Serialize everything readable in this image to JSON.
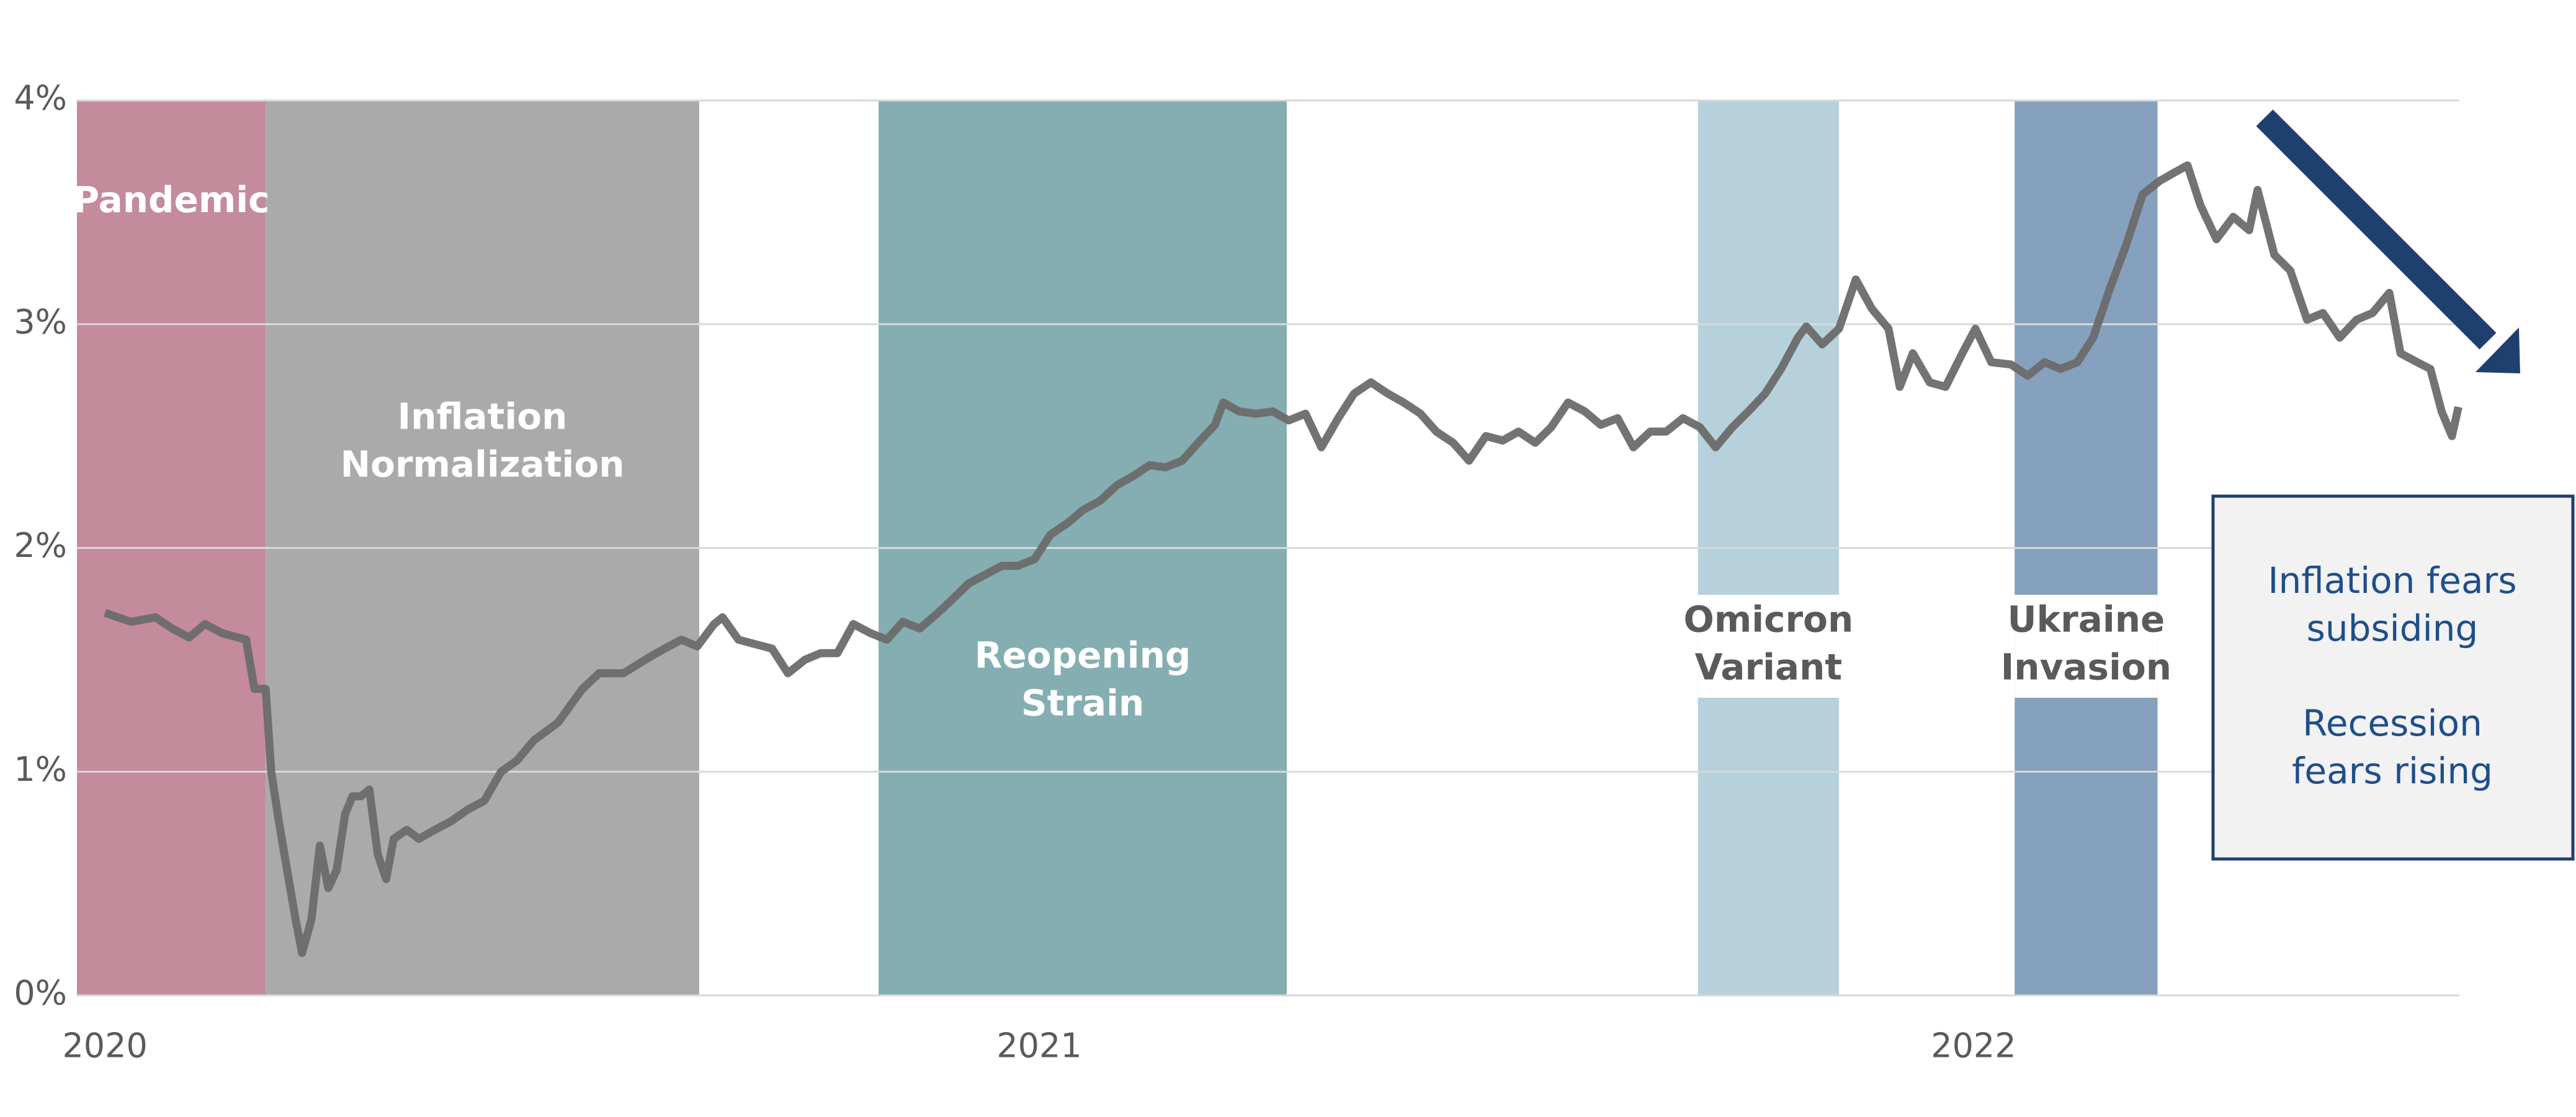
{
  "chart_data": {
    "type": "line",
    "x": [
      2020.0,
      2020.028,
      2020.054,
      2020.072,
      2020.09,
      2020.107,
      2020.125,
      2020.151,
      2020.16,
      2020.172,
      2020.178,
      2020.186,
      2020.195,
      2020.204,
      2020.211,
      2020.221,
      2020.23,
      2020.239,
      2020.248,
      2020.257,
      2020.265,
      2020.274,
      2020.283,
      2020.292,
      2020.301,
      2020.309,
      2020.323,
      2020.336,
      2020.353,
      2020.371,
      2020.388,
      2020.406,
      2020.424,
      2020.441,
      2020.459,
      2020.485,
      2020.511,
      2020.529,
      2020.555,
      2020.582,
      2020.599,
      2020.617,
      2020.634,
      2020.652,
      2020.661,
      2020.678,
      2020.696,
      2020.714,
      2020.731,
      2020.749,
      2020.766,
      2020.784,
      2020.801,
      2020.819,
      2020.837,
      2020.854,
      2020.872,
      2020.889,
      2020.907,
      2020.924,
      2020.942,
      2020.96,
      2020.977,
      2020.995,
      2021.012,
      2021.03,
      2021.047,
      2021.065,
      2021.083,
      2021.1,
      2021.118,
      2021.135,
      2021.153,
      2021.17,
      2021.188,
      2021.197,
      2021.214,
      2021.232,
      2021.25,
      2021.267,
      2021.285,
      2021.302,
      2021.32,
      2021.337,
      2021.355,
      2021.373,
      2021.39,
      2021.408,
      2021.425,
      2021.443,
      2021.46,
      2021.478,
      2021.496,
      2021.513,
      2021.531,
      2021.548,
      2021.566,
      2021.584,
      2021.601,
      2021.619,
      2021.636,
      2021.654,
      2021.671,
      2021.689,
      2021.707,
      2021.724,
      2021.742,
      2021.759,
      2021.777,
      2021.794,
      2021.812,
      2021.821,
      2021.838,
      2021.856,
      2021.874,
      2021.891,
      2021.909,
      2021.921,
      2021.935,
      2021.953,
      2021.97,
      2021.988,
      2022.002,
      2022.019,
      2022.04,
      2022.058,
      2022.076,
      2022.093,
      2022.111,
      2022.128,
      2022.146,
      2022.163,
      2022.181,
      2022.199,
      2022.216,
      2022.229,
      2022.243,
      2022.26,
      2022.278,
      2022.295,
      2022.304,
      2022.322,
      2022.339,
      2022.357,
      2022.374,
      2022.392,
      2022.41,
      2022.427,
      2022.445,
      2022.457,
      2022.475,
      2022.489,
      2022.501,
      2022.512,
      2022.519
    ],
    "series": [
      {
        "color": "#6b6b6b",
        "values": [
          1.71,
          1.67,
          1.69,
          1.64,
          1.6,
          1.66,
          1.62,
          1.59,
          1.37,
          1.37,
          1.0,
          0.78,
          0.56,
          0.34,
          0.19,
          0.34,
          0.67,
          0.48,
          0.56,
          0.81,
          0.89,
          0.89,
          0.92,
          0.63,
          0.52,
          0.7,
          0.74,
          0.7,
          0.74,
          0.78,
          0.83,
          0.87,
          1.0,
          1.05,
          1.14,
          1.22,
          1.37,
          1.44,
          1.44,
          1.51,
          1.55,
          1.59,
          1.56,
          1.66,
          1.69,
          1.59,
          1.57,
          1.55,
          1.44,
          1.5,
          1.53,
          1.53,
          1.66,
          1.62,
          1.59,
          1.67,
          1.64,
          1.7,
          1.77,
          1.84,
          1.88,
          1.92,
          1.92,
          1.95,
          2.06,
          2.11,
          2.17,
          2.21,
          2.28,
          2.32,
          2.37,
          2.36,
          2.39,
          2.47,
          2.55,
          2.65,
          2.61,
          2.6,
          2.61,
          2.57,
          2.6,
          2.45,
          2.58,
          2.69,
          2.74,
          2.69,
          2.65,
          2.6,
          2.52,
          2.47,
          2.39,
          2.5,
          2.48,
          2.52,
          2.47,
          2.54,
          2.65,
          2.61,
          2.55,
          2.58,
          2.45,
          2.52,
          2.52,
          2.58,
          2.54,
          2.45,
          2.54,
          2.61,
          2.69,
          2.8,
          2.94,
          2.99,
          2.91,
          2.98,
          3.2,
          3.07,
          2.98,
          2.72,
          2.87,
          2.74,
          2.72,
          2.87,
          2.98,
          2.83,
          2.82,
          2.77,
          2.83,
          2.8,
          2.83,
          2.94,
          3.16,
          3.35,
          3.58,
          3.64,
          3.68,
          3.71,
          3.53,
          3.38,
          3.48,
          3.42,
          3.6,
          3.31,
          3.24,
          3.02,
          3.05,
          2.94,
          3.02,
          3.05,
          3.14,
          2.87,
          2.83,
          2.8,
          2.61,
          2.5,
          2.63
        ]
      }
    ],
    "xlim": [
      2019.97,
      2022.52
    ],
    "xticks": [
      2020,
      2021,
      2022
    ],
    "ylim": [
      0,
      4
    ],
    "yticks": [
      {
        "value": 0,
        "label": "0%"
      },
      {
        "value": 1,
        "label": "1%"
      },
      {
        "value": 2,
        "label": "2%"
      },
      {
        "value": 3,
        "label": "3%"
      },
      {
        "value": 4,
        "label": "4%"
      }
    ],
    "grid": true,
    "periods": [
      {
        "label": [
          "Pandemic"
        ],
        "start": 2019.97,
        "end": 2020.172,
        "color": "#c48b9c",
        "label_color": "#ffffff"
      },
      {
        "label": [
          "Inflation",
          "Normalization"
        ],
        "start": 2020.172,
        "end": 2020.636,
        "color": "#aaaaaa",
        "label_color": "#ffffff"
      },
      {
        "label": [
          "Reopening",
          "Strain"
        ],
        "start": 2020.828,
        "end": 2021.265,
        "color": "#84aeb2",
        "label_color": "#ffffff"
      },
      {
        "label": [
          "Omicron",
          "Variant"
        ],
        "start": 2021.705,
        "end": 2021.856,
        "color": "#b6d1db",
        "label_color": "#5a5a5a"
      },
      {
        "label": [
          "Ukraine",
          "Invasion"
        ],
        "start": 2022.044,
        "end": 2022.197,
        "color": "#86a1bd",
        "label_color": "#5a5a5a"
      }
    ],
    "annotation": [
      [
        "Inflation fears",
        "subsiding"
      ],
      [
        "Recession",
        "fears rising"
      ]
    ]
  }
}
